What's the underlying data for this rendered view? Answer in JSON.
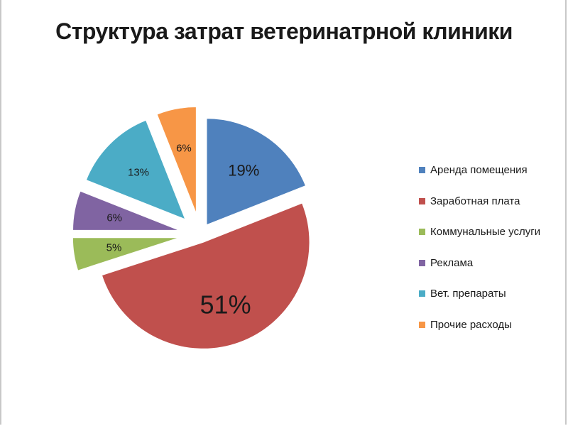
{
  "chart_data": {
    "type": "pie",
    "title": "Структура затрат ветеринатрной клиники",
    "slices": [
      {
        "label": "Аренда помещения",
        "value": 19,
        "display": "19%",
        "color": "#4f81bd"
      },
      {
        "label": "Заработная плата",
        "value": 51,
        "display": "51%",
        "color": "#c0504d"
      },
      {
        "label": "Коммунальные услуги",
        "value": 5,
        "display": "5%",
        "color": "#9bbb59"
      },
      {
        "label": "Реклама",
        "value": 6,
        "display": "6%",
        "color": "#8064a2"
      },
      {
        "label": "Вет. препараты",
        "value": 13,
        "display": "13%",
        "color": "#4bacc6"
      },
      {
        "label": "Прочие расходы",
        "value": 6,
        "display": "6%",
        "color": "#f79646"
      }
    ],
    "exploded": true,
    "legend_position": "right"
  }
}
